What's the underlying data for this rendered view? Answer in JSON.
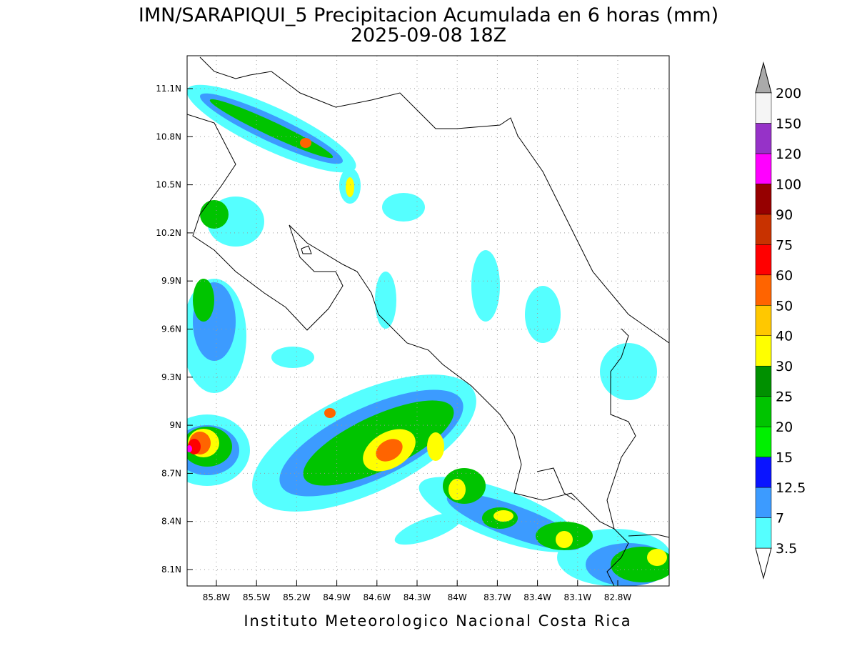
{
  "title": "IMN/SARAPIQUI_5 Precipitacion Acumulada en 6 horas (mm)",
  "subtitle": "2025-09-08 18Z",
  "x_axis": {
    "ticks": [
      "85.8W",
      "85.5W",
      "85.2W",
      "84.9W",
      "84.6W",
      "84.3W",
      "84W",
      "83.7W",
      "83.4W",
      "83.1W",
      "82.8W"
    ]
  },
  "y_axis": {
    "ticks": [
      "11.1N",
      "10.8N",
      "10.5N",
      "10.2N",
      "9.9N",
      "9.6N",
      "9.3N",
      "9N",
      "8.7N",
      "8.4N",
      "8.1N"
    ]
  },
  "colorbar": {
    "levels": [
      3.5,
      7,
      12.5,
      15,
      20,
      25,
      30,
      40,
      50,
      60,
      75,
      90,
      100,
      120,
      150,
      200
    ],
    "colors": [
      "#55ffff",
      "#3c9bff",
      "#0a14ff",
      "#00f000",
      "#00c400",
      "#009000",
      "#ffff00",
      "#ffc800",
      "#ff6400",
      "#ff0000",
      "#c83200",
      "#960000",
      "#ff00ff",
      "#9632c8",
      "#f5f5f5"
    ],
    "under_color": "#ffffff",
    "over_color": "#aaaaaa"
  },
  "credit": "Instituto Meteorologico Nacional Costa Rica"
}
